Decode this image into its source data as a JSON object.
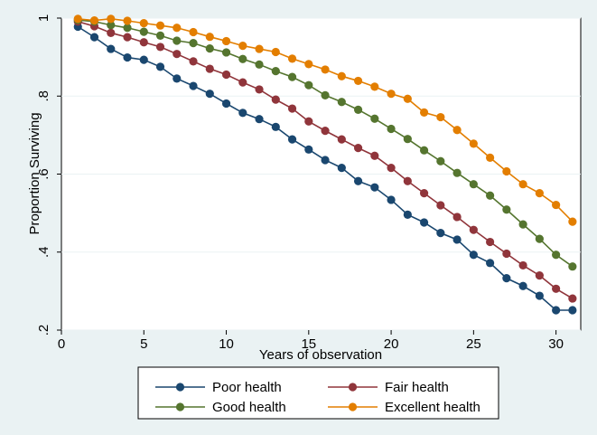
{
  "chart_data": {
    "type": "line",
    "title": "",
    "xlabel": "Years of observation",
    "ylabel": "Proportion Surviving",
    "xlim": [
      0,
      31.5
    ],
    "ylim": [
      0.2,
      1.0
    ],
    "x_ticks": [
      0,
      5,
      10,
      15,
      20,
      25,
      30
    ],
    "x_tick_labels": [
      "0",
      "5",
      "10",
      "15",
      "20",
      "25",
      "30"
    ],
    "y_ticks": [
      0.2,
      0.4,
      0.6,
      0.8,
      1.0
    ],
    "y_tick_labels": [
      ".2",
      ".4",
      ".6",
      ".8",
      "1"
    ],
    "grid": "horizontal",
    "legend_position": "bottom",
    "x": [
      1,
      2,
      3,
      4,
      5,
      6,
      7,
      8,
      9,
      10,
      11,
      12,
      13,
      14,
      15,
      16,
      17,
      18,
      19,
      20,
      21,
      22,
      23,
      24,
      25,
      26,
      27,
      28,
      29,
      30,
      31
    ],
    "series": [
      {
        "name": "Poor health",
        "color": "#1a476f",
        "values": [
          0.978,
          0.951,
          0.921,
          0.899,
          0.893,
          0.875,
          0.845,
          0.826,
          0.806,
          0.781,
          0.757,
          0.741,
          0.721,
          0.689,
          0.663,
          0.636,
          0.616,
          0.582,
          0.566,
          0.534,
          0.496,
          0.476,
          0.449,
          0.432,
          0.393,
          0.372,
          0.333,
          0.313,
          0.288,
          0.251,
          0.251
        ]
      },
      {
        "name": "Fair health",
        "color": "#90353b",
        "values": [
          0.991,
          0.979,
          0.962,
          0.951,
          0.938,
          0.926,
          0.908,
          0.889,
          0.87,
          0.855,
          0.835,
          0.817,
          0.791,
          0.768,
          0.735,
          0.711,
          0.689,
          0.667,
          0.647,
          0.616,
          0.582,
          0.551,
          0.52,
          0.49,
          0.457,
          0.426,
          0.396,
          0.366,
          0.34,
          0.306,
          0.281
        ]
      },
      {
        "name": "Good health",
        "color": "#55752f",
        "values": [
          0.995,
          0.991,
          0.982,
          0.975,
          0.965,
          0.955,
          0.942,
          0.936,
          0.922,
          0.912,
          0.895,
          0.881,
          0.864,
          0.849,
          0.828,
          0.802,
          0.785,
          0.765,
          0.742,
          0.716,
          0.69,
          0.661,
          0.633,
          0.603,
          0.574,
          0.545,
          0.509,
          0.471,
          0.434,
          0.393,
          0.363
        ]
      },
      {
        "name": "Excellent health",
        "color": "#e37e00",
        "values": [
          0.998,
          0.994,
          0.998,
          0.993,
          0.987,
          0.981,
          0.975,
          0.964,
          0.952,
          0.941,
          0.929,
          0.921,
          0.913,
          0.896,
          0.882,
          0.868,
          0.851,
          0.839,
          0.824,
          0.806,
          0.793,
          0.758,
          0.746,
          0.713,
          0.678,
          0.642,
          0.607,
          0.574,
          0.551,
          0.521,
          0.478
        ]
      }
    ]
  }
}
